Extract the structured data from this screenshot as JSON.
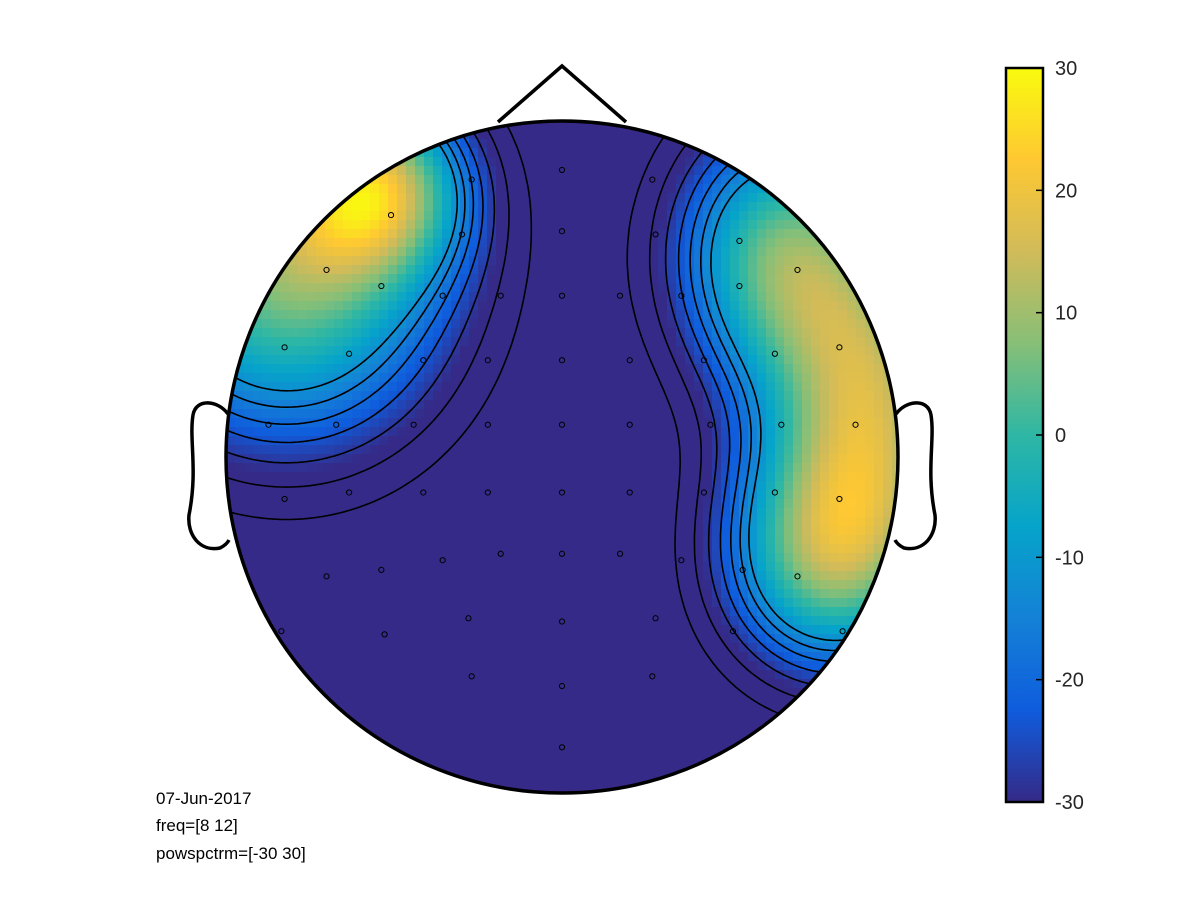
{
  "chart_data": {
    "type": "heatmap",
    "subtype": "eeg-topoplot",
    "colormap": "parula",
    "colorbar": {
      "position": "right",
      "min": -30,
      "max": 30,
      "ticks": [
        30,
        20,
        10,
        0,
        -10,
        -20,
        -30
      ],
      "tick_labels": [
        "30",
        "20",
        "10",
        "0",
        "-10",
        "-20",
        "-30"
      ],
      "colors": [
        "#352a87",
        "#0f5cdd",
        "#1481d6",
        "#06a4ca",
        "#2eb7a4",
        "#87bf77",
        "#d1bb59",
        "#fec832",
        "#f9fb0e"
      ]
    },
    "grid": false,
    "electrodes": [
      [
        0.0,
        0.89
      ],
      [
        -0.28,
        0.86
      ],
      [
        0.28,
        0.86
      ],
      [
        0.0,
        0.7
      ],
      [
        -0.53,
        0.75
      ],
      [
        -0.31,
        0.69
      ],
      [
        0.29,
        0.69
      ],
      [
        0.55,
        0.67
      ],
      [
        -0.73,
        0.58
      ],
      [
        -0.56,
        0.53
      ],
      [
        -0.37,
        0.5
      ],
      [
        -0.19,
        0.5
      ],
      [
        0.0,
        0.5
      ],
      [
        0.18,
        0.5
      ],
      [
        0.37,
        0.5
      ],
      [
        0.55,
        0.53
      ],
      [
        0.73,
        0.58
      ],
      [
        -0.86,
        0.34
      ],
      [
        -0.66,
        0.32
      ],
      [
        -0.43,
        0.3
      ],
      [
        -0.23,
        0.3
      ],
      [
        0.0,
        0.3
      ],
      [
        0.21,
        0.3
      ],
      [
        0.44,
        0.3
      ],
      [
        0.66,
        0.32
      ],
      [
        0.86,
        0.34
      ],
      [
        -0.91,
        0.1
      ],
      [
        -0.7,
        0.1
      ],
      [
        -0.46,
        0.1
      ],
      [
        -0.23,
        0.1
      ],
      [
        0.0,
        0.1
      ],
      [
        0.21,
        0.1
      ],
      [
        0.46,
        0.1
      ],
      [
        0.68,
        0.1
      ],
      [
        0.91,
        0.1
      ],
      [
        -0.86,
        -0.13
      ],
      [
        -0.66,
        -0.11
      ],
      [
        -0.43,
        -0.11
      ],
      [
        -0.23,
        -0.11
      ],
      [
        0.0,
        -0.11
      ],
      [
        0.21,
        -0.11
      ],
      [
        0.44,
        -0.11
      ],
      [
        0.66,
        -0.11
      ],
      [
        0.86,
        -0.13
      ],
      [
        -0.73,
        -0.37
      ],
      [
        -0.56,
        -0.35
      ],
      [
        -0.37,
        -0.32
      ],
      [
        -0.19,
        -0.3
      ],
      [
        0.0,
        -0.3
      ],
      [
        0.18,
        -0.3
      ],
      [
        0.37,
        -0.32
      ],
      [
        0.56,
        -0.35
      ],
      [
        0.73,
        -0.37
      ],
      [
        -0.87,
        -0.54
      ],
      [
        -0.55,
        -0.55
      ],
      [
        -0.29,
        -0.5
      ],
      [
        0.0,
        -0.51
      ],
      [
        0.29,
        -0.5
      ],
      [
        0.53,
        -0.54
      ],
      [
        0.87,
        -0.54
      ],
      [
        -0.28,
        -0.68
      ],
      [
        0.28,
        -0.68
      ],
      [
        0.0,
        -0.71
      ],
      [
        0.0,
        -0.9
      ]
    ],
    "power_sources": [
      {
        "x": -0.82,
        "y": 0.55,
        "sx": 0.34,
        "sy": 0.36,
        "value": 15
      },
      {
        "x": 0.93,
        "y": 0.15,
        "sx": 0.22,
        "sy": 0.36,
        "value": 16
      },
      {
        "x": 0.64,
        "y": 0.6,
        "sx": 0.22,
        "sy": 0.28,
        "value": 7
      },
      {
        "x": 0.78,
        "y": -0.3,
        "sx": 0.22,
        "sy": 0.24,
        "value": 5
      },
      {
        "x": -0.55,
        "y": 0.8,
        "sx": 0.18,
        "sy": 0.18,
        "value": 6
      }
    ],
    "baseline_power": -42
  },
  "annotations": {
    "date": "07-Jun-2017",
    "freq": "freq=[8 12]",
    "zlim": "powspctrm=[-30 30]"
  }
}
